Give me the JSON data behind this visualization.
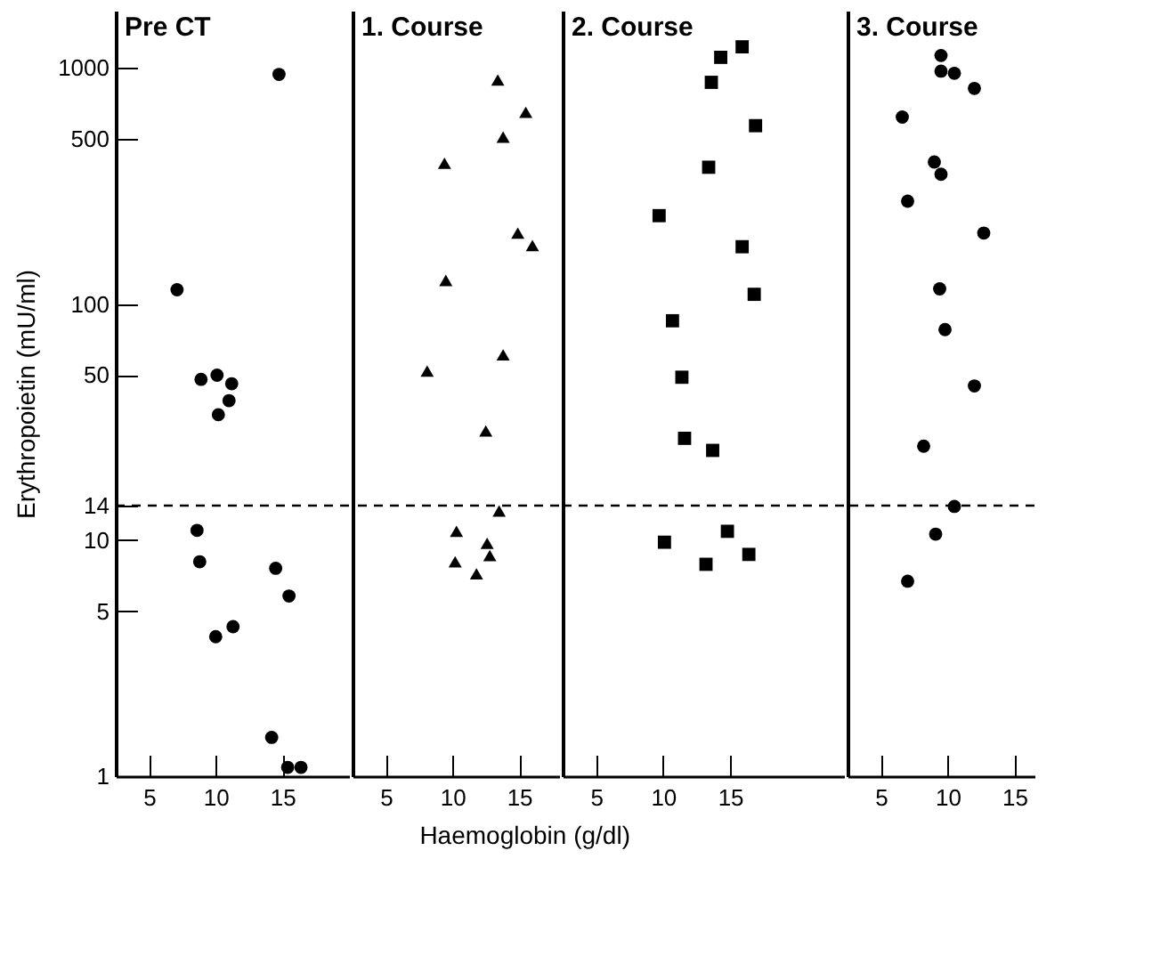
{
  "chart_data": [
    {
      "type": "scatter",
      "title": "Pre CT",
      "xlabel": "Haemoglobin (g/dl)",
      "ylabel": "Erythropoietin (mU/ml)",
      "marker": "circle",
      "color": "#000000",
      "log": "y",
      "xlim": [
        2.5,
        20
      ],
      "xticks": [
        5,
        10,
        15
      ],
      "ylim": [
        1,
        1750
      ],
      "yticks": [
        1,
        5,
        10,
        14,
        50,
        100,
        500,
        1000
      ],
      "ref_lines": [
        {
          "axis": "y",
          "value": 14,
          "line_style": "dashed"
        }
      ],
      "x": [
        14.75,
        7.1,
        8.9,
        10.1,
        11.2,
        11,
        10.2,
        8.6,
        8.8,
        14.5,
        15.5,
        10,
        11.3,
        14.2,
        15.4,
        16.4
      ],
      "values": [
        940,
        115,
        48,
        50,
        46,
        39,
        34,
        11,
        8.1,
        7.6,
        5.8,
        3.9,
        4.3,
        1.46,
        1.09,
        1.09
      ]
    },
    {
      "type": "scatter",
      "title": "1. Course",
      "marker": "triangle",
      "color": "#000000",
      "log": "y",
      "tick_labels": "x",
      "xlim": [
        2.5,
        18
      ],
      "xticks": [
        5,
        10,
        15
      ],
      "ylim": [
        1,
        1750
      ],
      "ref_lines": [
        {
          "axis": "y",
          "value": 14,
          "line_style": "dashed"
        }
      ],
      "x": [
        13.4,
        15.5,
        13.8,
        9.4,
        14.9,
        16,
        9.5,
        13.8,
        8.1,
        12.5,
        13.5,
        10.3,
        12.6,
        12.8,
        10.2,
        11.8
      ],
      "values": [
        890,
        650,
        510,
        395,
        200,
        177,
        126,
        61,
        52,
        29,
        13.3,
        10.9,
        9.7,
        8.6,
        8.1,
        7.2
      ]
    },
    {
      "type": "scatter",
      "title": "2. Course",
      "marker": "square",
      "color": "#000000",
      "log": "y",
      "tick_labels": "x",
      "xlim": [
        2.5,
        23.5
      ],
      "xticks": [
        5,
        10,
        15
      ],
      "ylim": [
        1,
        1750
      ],
      "ref_lines": [
        {
          "axis": "y",
          "value": 14,
          "line_style": "dashed"
        }
      ],
      "x": [
        15.9,
        14.3,
        13.6,
        16.9,
        13.4,
        9.7,
        15.9,
        16.8,
        10.7,
        11.4,
        11.6,
        13.7,
        14.8,
        10.1,
        16.4,
        13.2
      ],
      "values": [
        1230,
        1110,
        870,
        570,
        380,
        237,
        175,
        110,
        85,
        49,
        27,
        24,
        10.9,
        9.8,
        8.7,
        7.9
      ]
    },
    {
      "type": "scatter",
      "title": "3. Course",
      "marker": "circle",
      "color": "#000000",
      "log": "y",
      "tick_labels": "x",
      "xlim": [
        2.5,
        16.5
      ],
      "xticks": [
        5,
        10,
        15
      ],
      "ylim": [
        1,
        1750
      ],
      "ref_lines": [
        {
          "axis": "y",
          "value": 14,
          "line_style": "dashed"
        }
      ],
      "x": [
        9.5,
        9.5,
        10.5,
        12,
        6.6,
        9,
        9.5,
        7,
        12.7,
        9.4,
        9.8,
        12,
        8.2,
        10.5,
        9.1,
        7
      ],
      "values": [
        1130,
        970,
        950,
        820,
        620,
        400,
        355,
        273,
        200,
        116,
        78,
        45,
        25,
        13.9,
        10.6,
        6.7
      ]
    }
  ]
}
